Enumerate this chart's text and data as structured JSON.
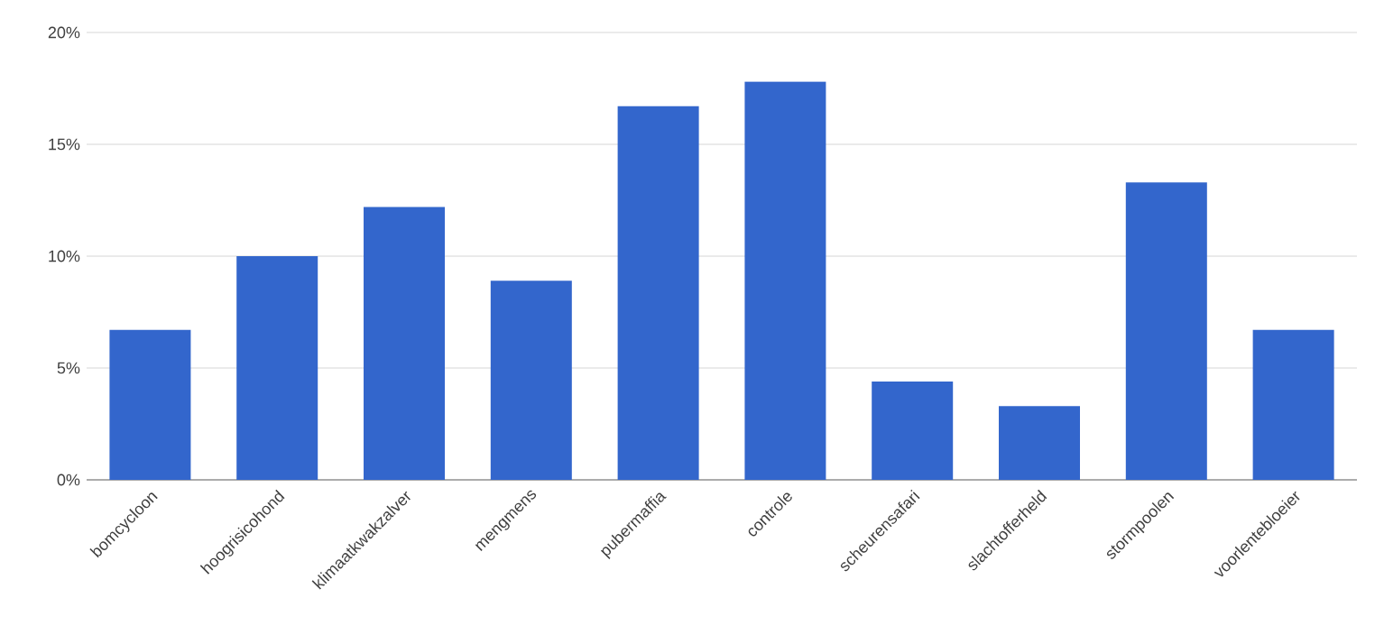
{
  "chart_data": {
    "type": "bar",
    "categories": [
      "bomcycloon",
      "hoogrisicohond",
      "klimaatkwakzalver",
      "mengmens",
      "pubermaffia",
      "controle",
      "scheurensafari",
      "slachtofferheld",
      "stormpoolen",
      "voorlentebloeier"
    ],
    "values": [
      6.7,
      10.0,
      12.2,
      8.9,
      16.7,
      17.8,
      4.4,
      3.3,
      13.3,
      6.7
    ],
    "color": "#3366cc",
    "ylim": [
      0,
      20
    ],
    "yticks": [
      {
        "value": 0,
        "label": "0%"
      },
      {
        "value": 5,
        "label": "5%"
      },
      {
        "value": 10,
        "label": "10%"
      },
      {
        "value": 15,
        "label": "15%"
      },
      {
        "value": 20,
        "label": "20%"
      }
    ],
    "grid": "y"
  }
}
